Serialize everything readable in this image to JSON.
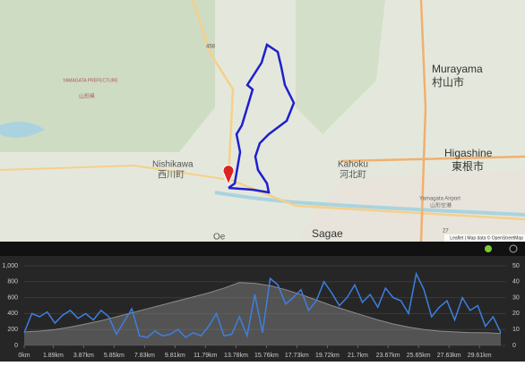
{
  "map": {
    "labels": {
      "murayama": "Murayama",
      "murayama_jp": "村山市",
      "higashine": "Higashine",
      "higashine_jp": "東根市",
      "nishikawa": "Nishikawa",
      "nishikawa_jp": "西川町",
      "kahoku": "Kahoku",
      "kahoku_jp": "河北町",
      "sagae": "Sagae",
      "prefecture": "YAMAGATA PREFECTURE",
      "prefecture_jp": "山形県",
      "airport": "Yamagata Airport",
      "airport_jp": "山形空港",
      "road_458": "458",
      "road_27": "27",
      "oe": "Oe"
    },
    "attribution": "Leaflet | Map data © OpenStreetMap"
  },
  "chart_data": {
    "type": "line",
    "xlim": [
      0,
      31.35
    ],
    "xticks": [
      {
        "value": 0,
        "label": "0km"
      },
      {
        "value": 1.89,
        "label": "1.89km"
      },
      {
        "value": 3.87,
        "label": "3.87km"
      },
      {
        "value": 5.85,
        "label": "5.85km"
      },
      {
        "value": 7.83,
        "label": "7.83km"
      },
      {
        "value": 9.81,
        "label": "9.81km"
      },
      {
        "value": 11.79,
        "label": "11.79km"
      },
      {
        "value": 13.78,
        "label": "13.78km"
      },
      {
        "value": 15.76,
        "label": "15.76km"
      },
      {
        "value": 17.73,
        "label": "17.73km"
      },
      {
        "value": 19.72,
        "label": "19.72km"
      },
      {
        "value": 21.7,
        "label": "21.7km"
      },
      {
        "value": 23.67,
        "label": "23.67km"
      },
      {
        "value": 25.65,
        "label": "25.65km"
      },
      {
        "value": 27.63,
        "label": "27.63km"
      },
      {
        "value": 29.61,
        "label": "29.61km"
      }
    ],
    "ylim": [
      0,
      1000
    ],
    "yticks": [
      0,
      200,
      400,
      600,
      800,
      {
        "value": 1000,
        "label": "1,000"
      }
    ],
    "y2lim": [
      0,
      50
    ],
    "y2ticks": [
      0,
      10,
      20,
      30,
      40,
      50
    ],
    "grid": true,
    "series": [
      {
        "color": "#8c8c8c",
        "fill": true,
        "x": [
          0,
          1,
          2,
          3,
          4,
          5,
          6,
          7,
          8,
          9,
          10,
          11,
          12,
          13,
          14,
          15,
          16,
          17,
          18,
          19,
          20,
          21,
          22,
          23,
          24,
          25,
          26,
          27,
          28,
          29,
          30,
          31
        ],
        "values": [
          170,
          180,
          200,
          230,
          270,
          310,
          360,
          410,
          460,
          510,
          560,
          610,
          660,
          720,
          790,
          780,
          750,
          700,
          640,
          570,
          500,
          440,
          380,
          320,
          270,
          230,
          200,
          180,
          170,
          160,
          160,
          150
        ]
      },
      {
        "color": "#3d7fe0",
        "axis": "y2",
        "x": [
          0,
          0.5,
          1,
          1.5,
          2,
          2.5,
          3,
          3.5,
          4,
          4.5,
          5,
          5.5,
          6,
          6.5,
          7,
          7.5,
          8,
          8.5,
          9,
          9.5,
          10,
          10.5,
          11,
          11.5,
          12,
          12.5,
          13,
          13.5,
          14,
          14.5,
          15,
          15.5,
          16,
          16.5,
          17,
          17.5,
          18,
          18.5,
          19,
          19.5,
          20,
          20.5,
          21,
          21.5,
          22,
          22.5,
          23,
          23.5,
          24,
          24.5,
          25,
          25.5,
          26,
          26.5,
          27,
          27.5,
          28,
          28.5,
          29,
          29.5,
          30,
          30.5,
          31
        ],
        "values": [
          8,
          20,
          18,
          21,
          14,
          19,
          22,
          17,
          20,
          16,
          22,
          18,
          7,
          15,
          23,
          6,
          5,
          9,
          6,
          7,
          10,
          5,
          8,
          6,
          12,
          20,
          6,
          7,
          18,
          6,
          32,
          8,
          42,
          38,
          26,
          30,
          35,
          22,
          28,
          40,
          33,
          25,
          30,
          38,
          27,
          32,
          24,
          36,
          30,
          28,
          20,
          45,
          35,
          18,
          24,
          28,
          16,
          30,
          22,
          25,
          12,
          18,
          8
        ]
      }
    ]
  }
}
